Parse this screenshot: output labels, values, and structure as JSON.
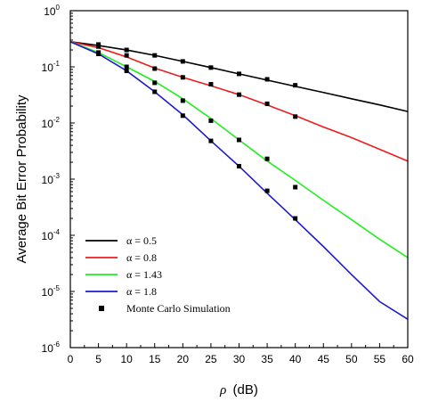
{
  "chart_data": {
    "type": "line",
    "xlabel_symbol": "ρ",
    "xlabel_unit": "(dB)",
    "ylabel": "Average Bit Error Probability",
    "xlim": [
      0,
      60
    ],
    "ylim_exponents": [
      -6,
      0
    ],
    "y_scale": "log",
    "x_ticks": [
      "0",
      "5",
      "10",
      "15",
      "20",
      "25",
      "30",
      "35",
      "40",
      "45",
      "50",
      "55",
      "60"
    ],
    "y_ticks": [
      {
        "base": "10",
        "exp": "0"
      },
      {
        "base": "10",
        "exp": "-1"
      },
      {
        "base": "10",
        "exp": "-2"
      },
      {
        "base": "10",
        "exp": "-3"
      },
      {
        "base": "10",
        "exp": "-4"
      },
      {
        "base": "10",
        "exp": "-5"
      },
      {
        "base": "10",
        "exp": "-6"
      }
    ],
    "legend_position": "bottom-left",
    "series": [
      {
        "name": "α = 0.5",
        "color": "#000000",
        "x": [
          0,
          5,
          10,
          15,
          20,
          25,
          30,
          35,
          40,
          45,
          50,
          55,
          60
        ],
        "y": [
          0.28,
          0.24,
          0.2,
          0.16,
          0.125,
          0.097,
          0.075,
          0.058,
          0.045,
          0.035,
          0.027,
          0.021,
          0.016
        ]
      },
      {
        "name": "α = 0.8",
        "color": "#ee1c1c",
        "x": [
          0,
          5,
          10,
          15,
          20,
          25,
          30,
          35,
          40,
          45,
          50,
          55,
          60
        ],
        "y": [
          0.28,
          0.22,
          0.15,
          0.095,
          0.065,
          0.046,
          0.032,
          0.021,
          0.0135,
          0.0085,
          0.0055,
          0.0034,
          0.0021
        ]
      },
      {
        "name": "α = 1.43",
        "color": "#22ee22",
        "x": [
          0,
          5,
          10,
          15,
          20,
          25,
          30,
          35,
          40,
          45,
          50,
          55,
          60
        ],
        "y": [
          0.28,
          0.18,
          0.1,
          0.055,
          0.027,
          0.012,
          0.005,
          0.0021,
          0.00095,
          0.00042,
          0.00019,
          8.5e-05,
          4e-05
        ]
      },
      {
        "name": "α = 1.8",
        "color": "#1c1ccc",
        "x": [
          0,
          5,
          10,
          15,
          20,
          25,
          30,
          35,
          40,
          45,
          50,
          55,
          60
        ],
        "y": [
          0.28,
          0.17,
          0.085,
          0.036,
          0.014,
          0.0048,
          0.0017,
          0.00056,
          0.00019,
          6.3e-05,
          2e-05,
          6.6e-06,
          3.2e-06
        ]
      }
    ],
    "monte_carlo": {
      "name": "Monte Carlo Simulation",
      "color": "#000000",
      "points": [
        [
          5,
          0.25
        ],
        [
          10,
          0.2
        ],
        [
          15,
          0.16
        ],
        [
          20,
          0.125
        ],
        [
          25,
          0.097
        ],
        [
          30,
          0.075
        ],
        [
          35,
          0.06
        ],
        [
          40,
          0.047
        ],
        [
          5,
          0.23
        ],
        [
          10,
          0.16
        ],
        [
          15,
          0.093
        ],
        [
          20,
          0.065
        ],
        [
          25,
          0.049
        ],
        [
          30,
          0.032
        ],
        [
          35,
          0.022
        ],
        [
          40,
          0.013
        ],
        [
          5,
          0.18
        ],
        [
          10,
          0.1
        ],
        [
          15,
          0.052
        ],
        [
          20,
          0.025
        ],
        [
          25,
          0.011
        ],
        [
          30,
          0.005
        ],
        [
          35,
          0.0023
        ],
        [
          40,
          0.00072
        ],
        [
          5,
          0.17
        ],
        [
          10,
          0.085
        ],
        [
          15,
          0.036
        ],
        [
          20,
          0.0135
        ],
        [
          25,
          0.0048
        ],
        [
          30,
          0.0017
        ],
        [
          35,
          0.00062
        ],
        [
          40,
          0.0002
        ]
      ]
    }
  }
}
